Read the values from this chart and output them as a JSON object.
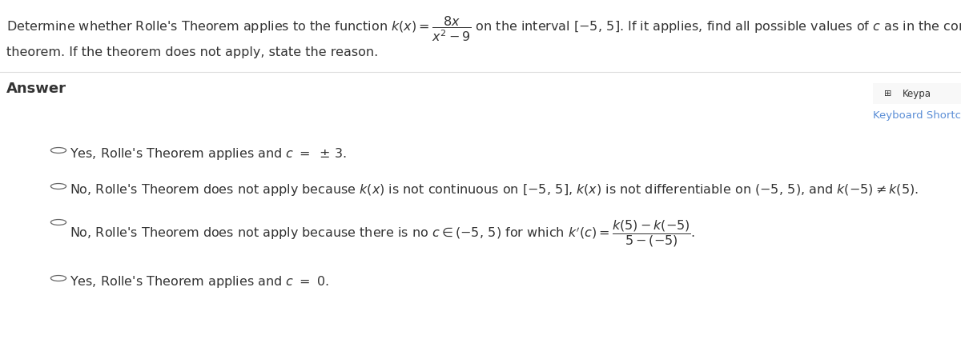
{
  "bg_color": "#ffffff",
  "text_color": "#333333",
  "link_color": "#5b8ed6",
  "answer_label": "Answer",
  "keypad_label": "Keypa",
  "keyboard_shortcut_label": "Keyboard Shortc",
  "question_line2": "theorem. If the theorem does not apply, state the reason.",
  "font_size_question": 11.5,
  "font_size_answer_label": 13,
  "font_size_options": 11.5,
  "font_size_keypad": 9.5
}
